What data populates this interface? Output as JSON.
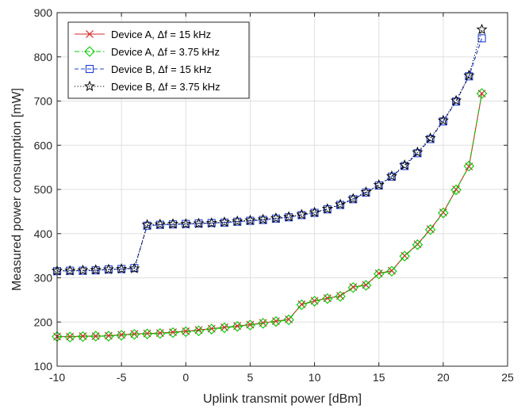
{
  "chart_data": {
    "type": "line",
    "xlabel": "Uplink transmit power [dBm]",
    "ylabel": "Measured power consumption [mW]",
    "xlim": [
      -10,
      25
    ],
    "ylim": [
      100,
      900
    ],
    "xticks": [
      -10,
      -5,
      0,
      5,
      10,
      15,
      20,
      25
    ],
    "yticks": [
      100,
      200,
      300,
      400,
      500,
      600,
      700,
      800,
      900
    ],
    "grid": true,
    "legend_position": "top-left",
    "x": [
      -10,
      -9,
      -8,
      -7,
      -6,
      -5,
      -4,
      -3,
      -2,
      -1,
      0,
      1,
      2,
      3,
      4,
      5,
      6,
      7,
      8,
      9,
      10,
      11,
      12,
      13,
      14,
      15,
      16,
      17,
      18,
      19,
      20,
      21,
      22,
      23
    ],
    "series": [
      {
        "name": "Device A, Δf = 15 kHz",
        "color": "#d62728",
        "marker": "x",
        "line": "solid",
        "values": [
          167,
          167,
          168,
          168,
          169,
          171,
          173,
          174,
          175,
          177,
          179,
          182,
          185,
          188,
          191,
          194,
          198,
          202,
          206,
          240,
          248,
          254,
          259,
          279,
          284,
          310,
          316,
          350,
          376,
          410,
          448,
          500,
          552,
          717
        ]
      },
      {
        "name": "Device A, Δf = 3.75 kHz",
        "color": "#00cc00",
        "marker": "diamond",
        "line": "dashdot",
        "values": [
          167,
          166,
          167,
          168,
          168,
          170,
          172,
          173,
          174,
          176,
          178,
          180,
          184,
          187,
          190,
          193,
          197,
          201,
          205,
          239,
          247,
          253,
          258,
          278,
          283,
          309,
          315,
          349,
          375,
          409,
          447,
          499,
          553,
          717
        ]
      },
      {
        "name": "Device B, Δf = 15 kHz",
        "color": "#1f3fd6",
        "marker": "square",
        "line": "dashed",
        "values": [
          315,
          316,
          316,
          317,
          319,
          320,
          322,
          418,
          420,
          421,
          422,
          423,
          424,
          425,
          427,
          429,
          431,
          434,
          437,
          442,
          447,
          455,
          465,
          478,
          493,
          509,
          529,
          553,
          582,
          614,
          654,
          699,
          756,
          842
        ]
      },
      {
        "name": "Device B, Δf = 3.75 kHz",
        "color": "#000000",
        "marker": "star",
        "line": "dotted",
        "values": [
          316,
          316,
          317,
          318,
          319,
          320,
          321,
          420,
          421,
          422,
          422,
          423,
          424,
          426,
          428,
          430,
          432,
          435,
          438,
          443,
          448,
          456,
          466,
          479,
          494,
          510,
          530,
          555,
          584,
          616,
          656,
          701,
          758,
          862
        ]
      }
    ]
  },
  "colors": {
    "axis": "#262626",
    "grid": "#e0e0e0",
    "background": "#ffffff"
  }
}
